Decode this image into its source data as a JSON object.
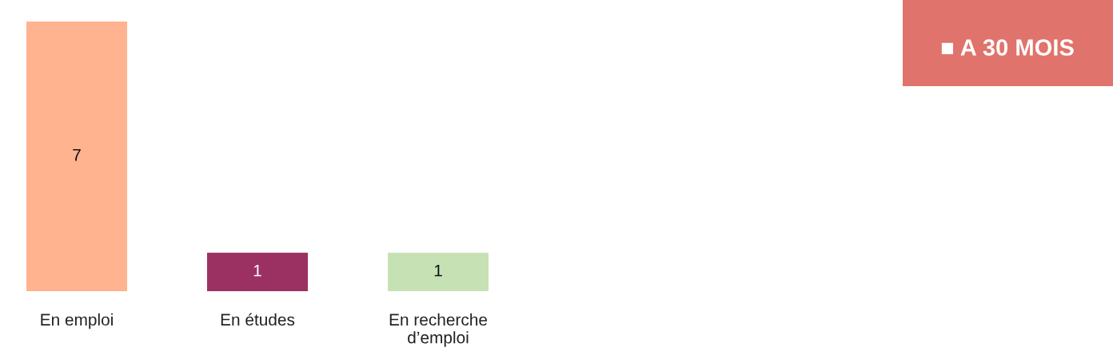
{
  "chart_data": {
    "type": "bar",
    "title": "■ A 30 MOIS",
    "categories": [
      "En emploi",
      "En études",
      "En recherche\nd’emploi"
    ],
    "values": [
      7,
      1,
      1
    ],
    "colors": [
      "#ffb38e",
      "#9b3163",
      "#c6e2b5"
    ],
    "data_labels": true,
    "grid": false
  }
}
